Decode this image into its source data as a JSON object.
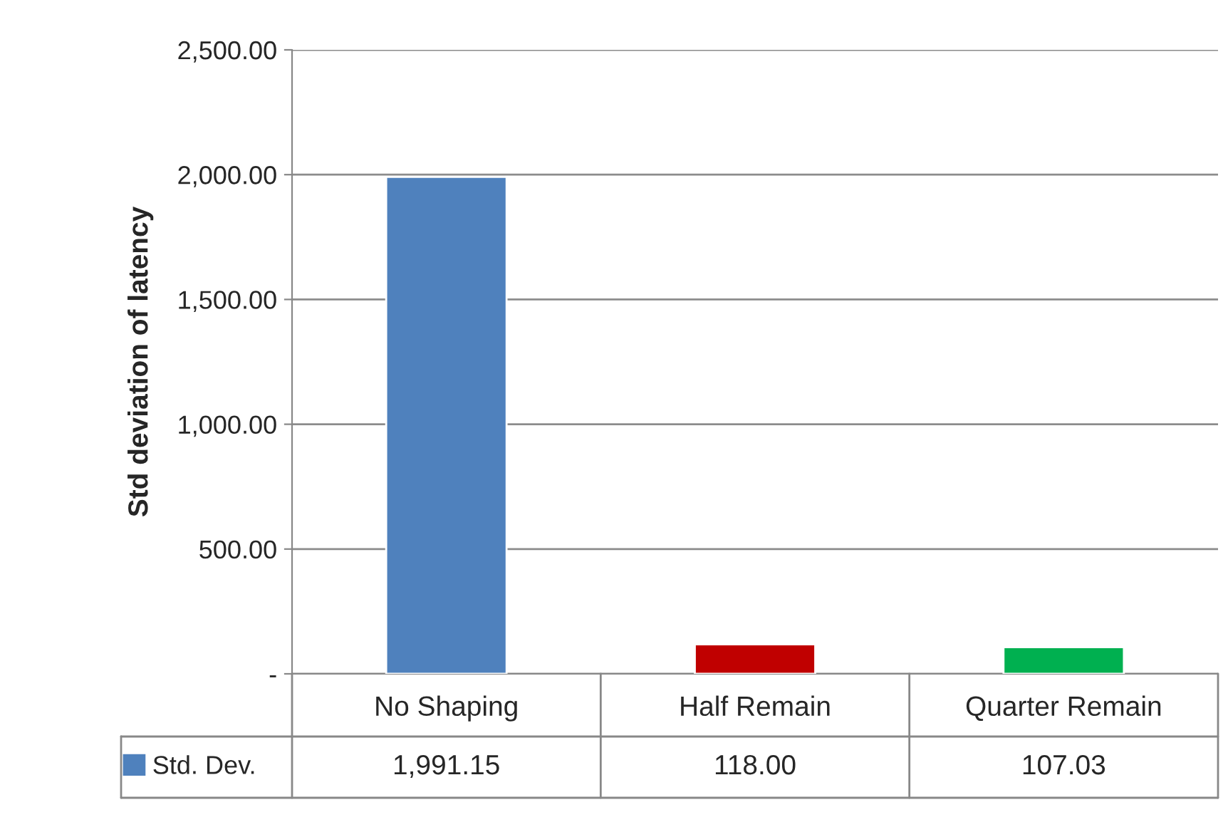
{
  "chart_data": {
    "type": "bar",
    "ylabel": "Std deviation of latency",
    "categories": [
      "No Shaping",
      "Half Remain",
      "Quarter Remain"
    ],
    "series": [
      {
        "name": "Std. Dev.",
        "colors": [
          "#4f81bd",
          "#c00000",
          "#00b050"
        ],
        "values": [
          1991.15,
          118.0,
          107.03
        ],
        "value_labels": [
          "1,991.15",
          "118.00",
          "107.03"
        ]
      }
    ],
    "ylim": [
      0,
      2500
    ],
    "yticks": [
      {
        "value": 0,
        "label": "-"
      },
      {
        "value": 500,
        "label": "500.00"
      },
      {
        "value": 1000,
        "label": "1,000.00"
      },
      {
        "value": 1500,
        "label": "1,500.00"
      },
      {
        "value": 2000,
        "label": "2,000.00"
      },
      {
        "value": 2500,
        "label": "2,500.00"
      }
    ],
    "grid": "y",
    "legend": "bottom"
  }
}
